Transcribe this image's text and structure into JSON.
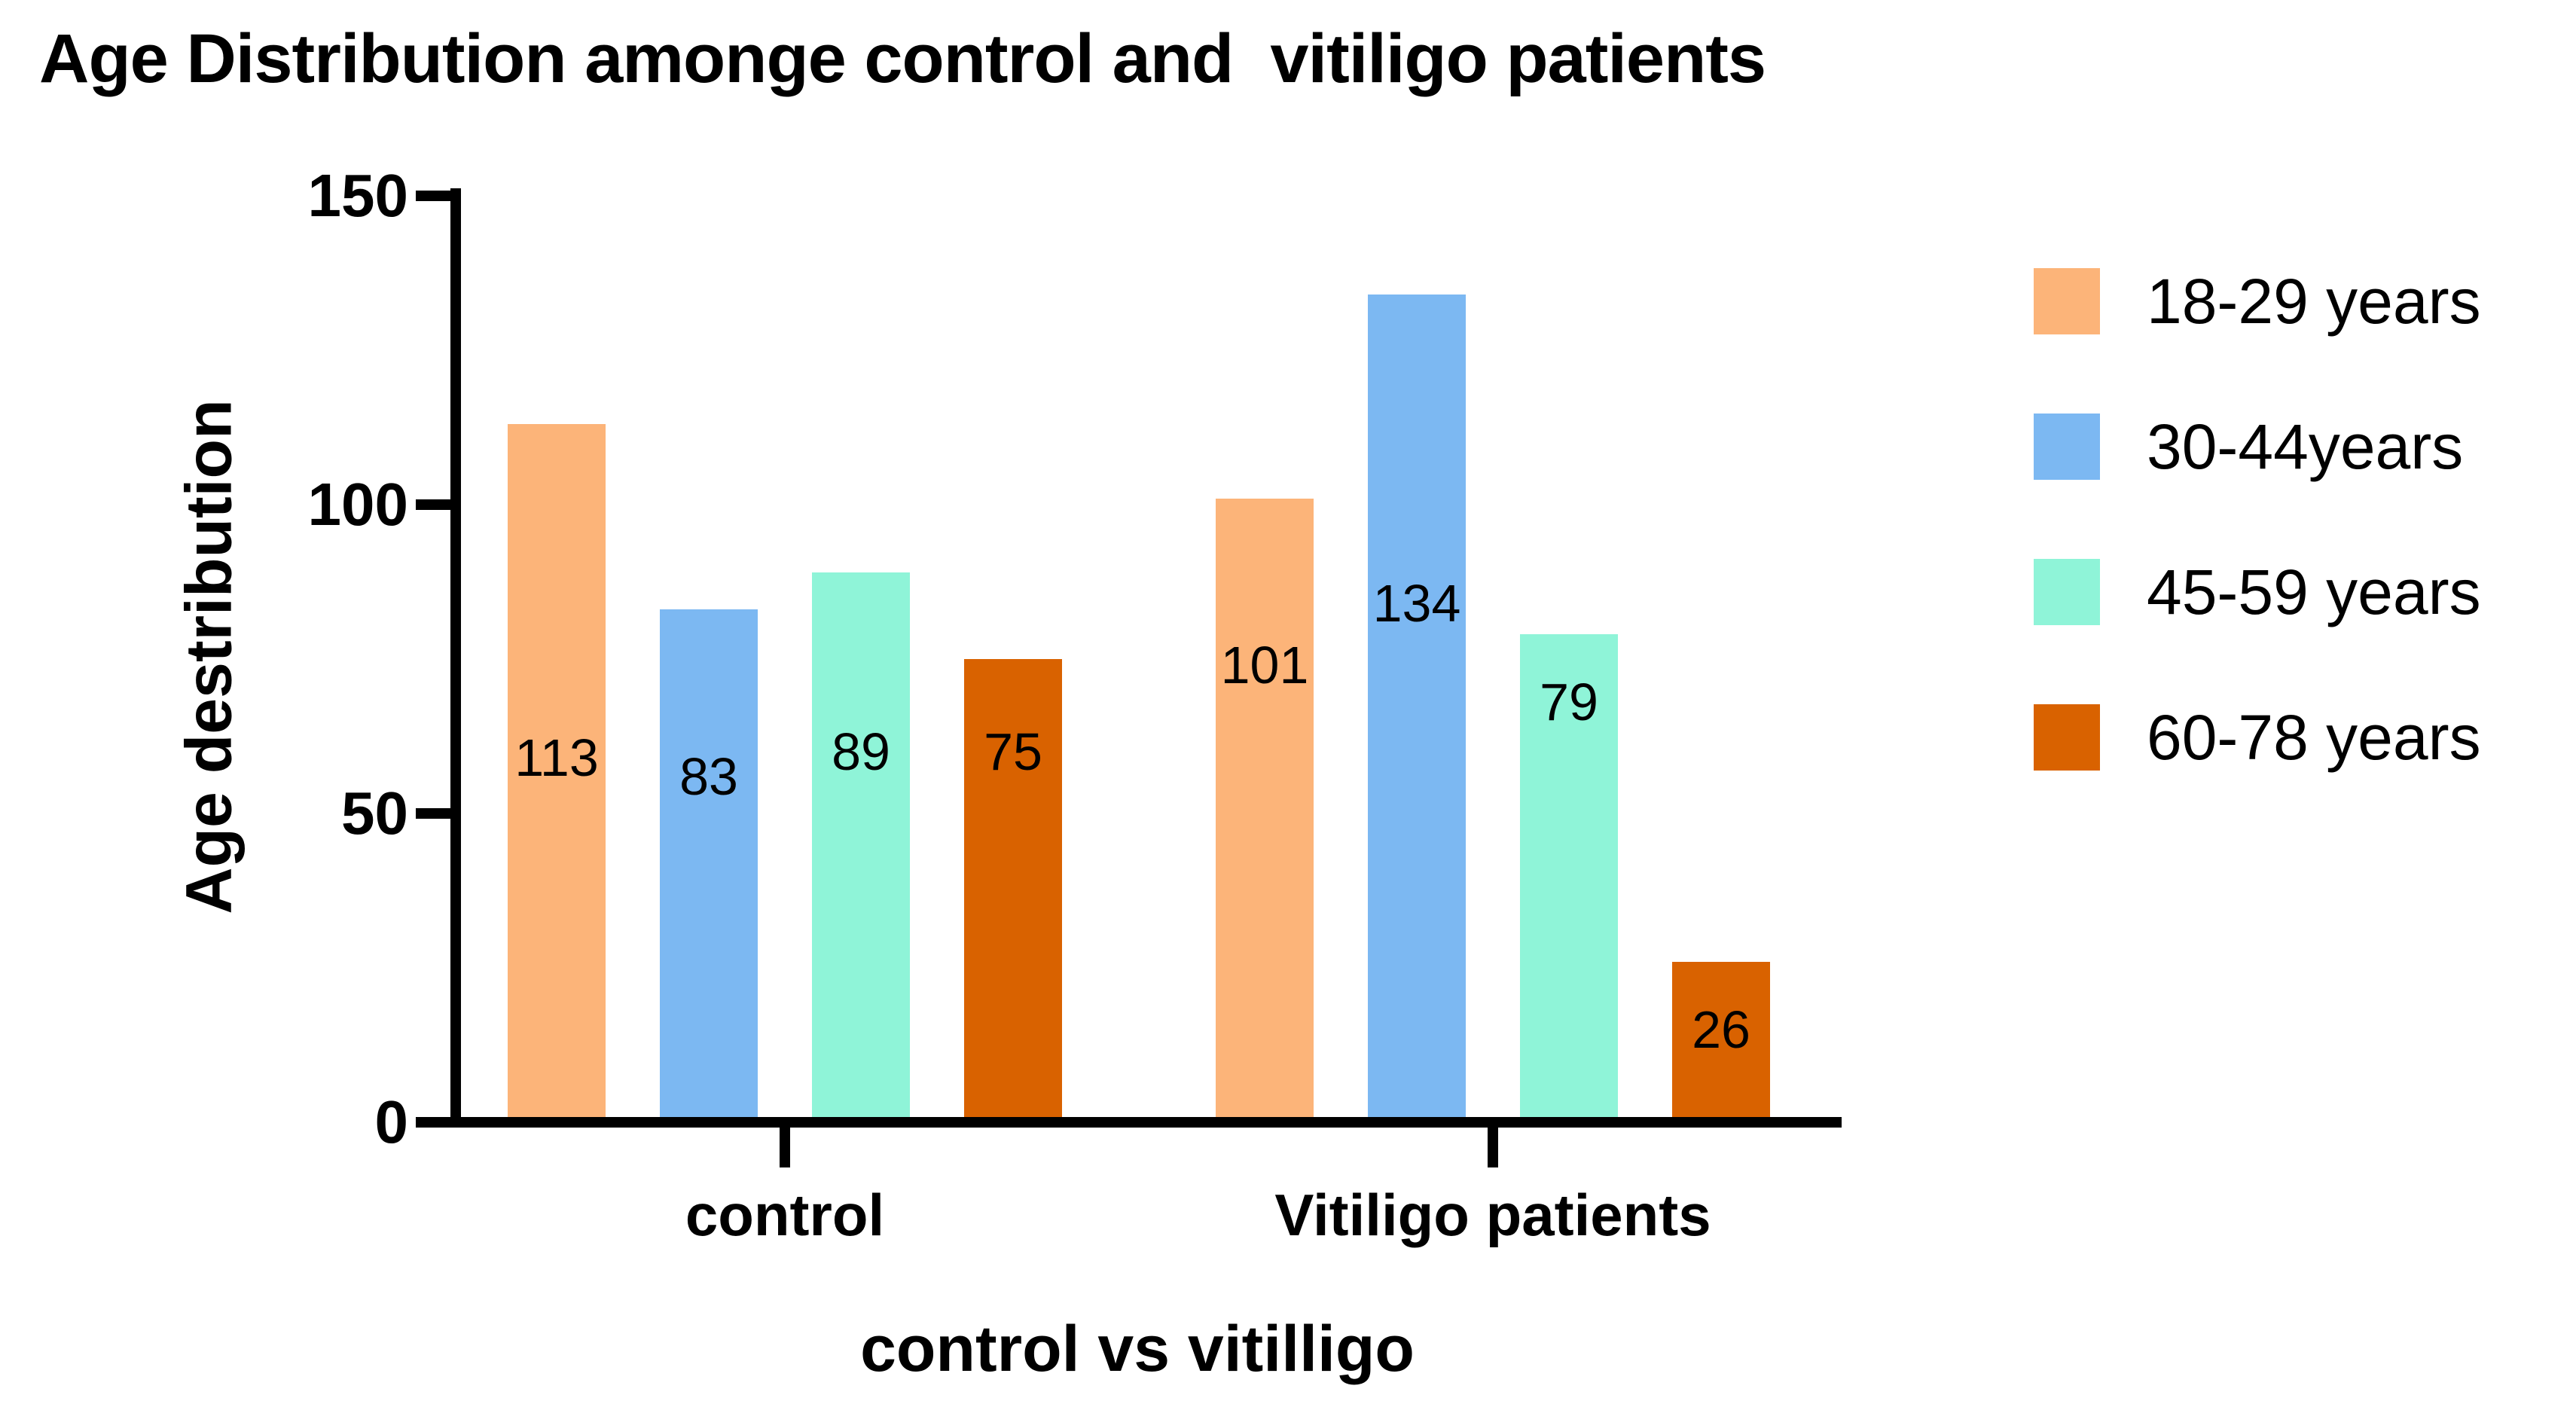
{
  "chart_data": {
    "type": "bar",
    "title": "Age Distribution amonge control and  vitiligo patients",
    "xlabel": "control vs vitilligo",
    "ylabel": "Age destribution",
    "ylim": [
      0,
      150
    ],
    "yticks": [
      0,
      50,
      100,
      150
    ],
    "grid": false,
    "legend_position": "right",
    "categories": [
      "control",
      "Vitiligo patients"
    ],
    "series": [
      {
        "name": "18-29 years",
        "color": "#FCB479",
        "values": [
          113,
          101
        ],
        "label_y": [
          59,
          74
        ]
      },
      {
        "name": "30-44years",
        "color": "#7CB8F2",
        "values": [
          83,
          134
        ],
        "label_y": [
          56,
          84
        ]
      },
      {
        "name": "45-59 years",
        "color": "#8FF4D8",
        "values": [
          89,
          79
        ],
        "label_y": [
          60,
          68
        ]
      },
      {
        "name": "60-78 years",
        "color": "#D96200",
        "values": [
          75,
          26
        ],
        "label_y": [
          60,
          15
        ]
      }
    ]
  }
}
